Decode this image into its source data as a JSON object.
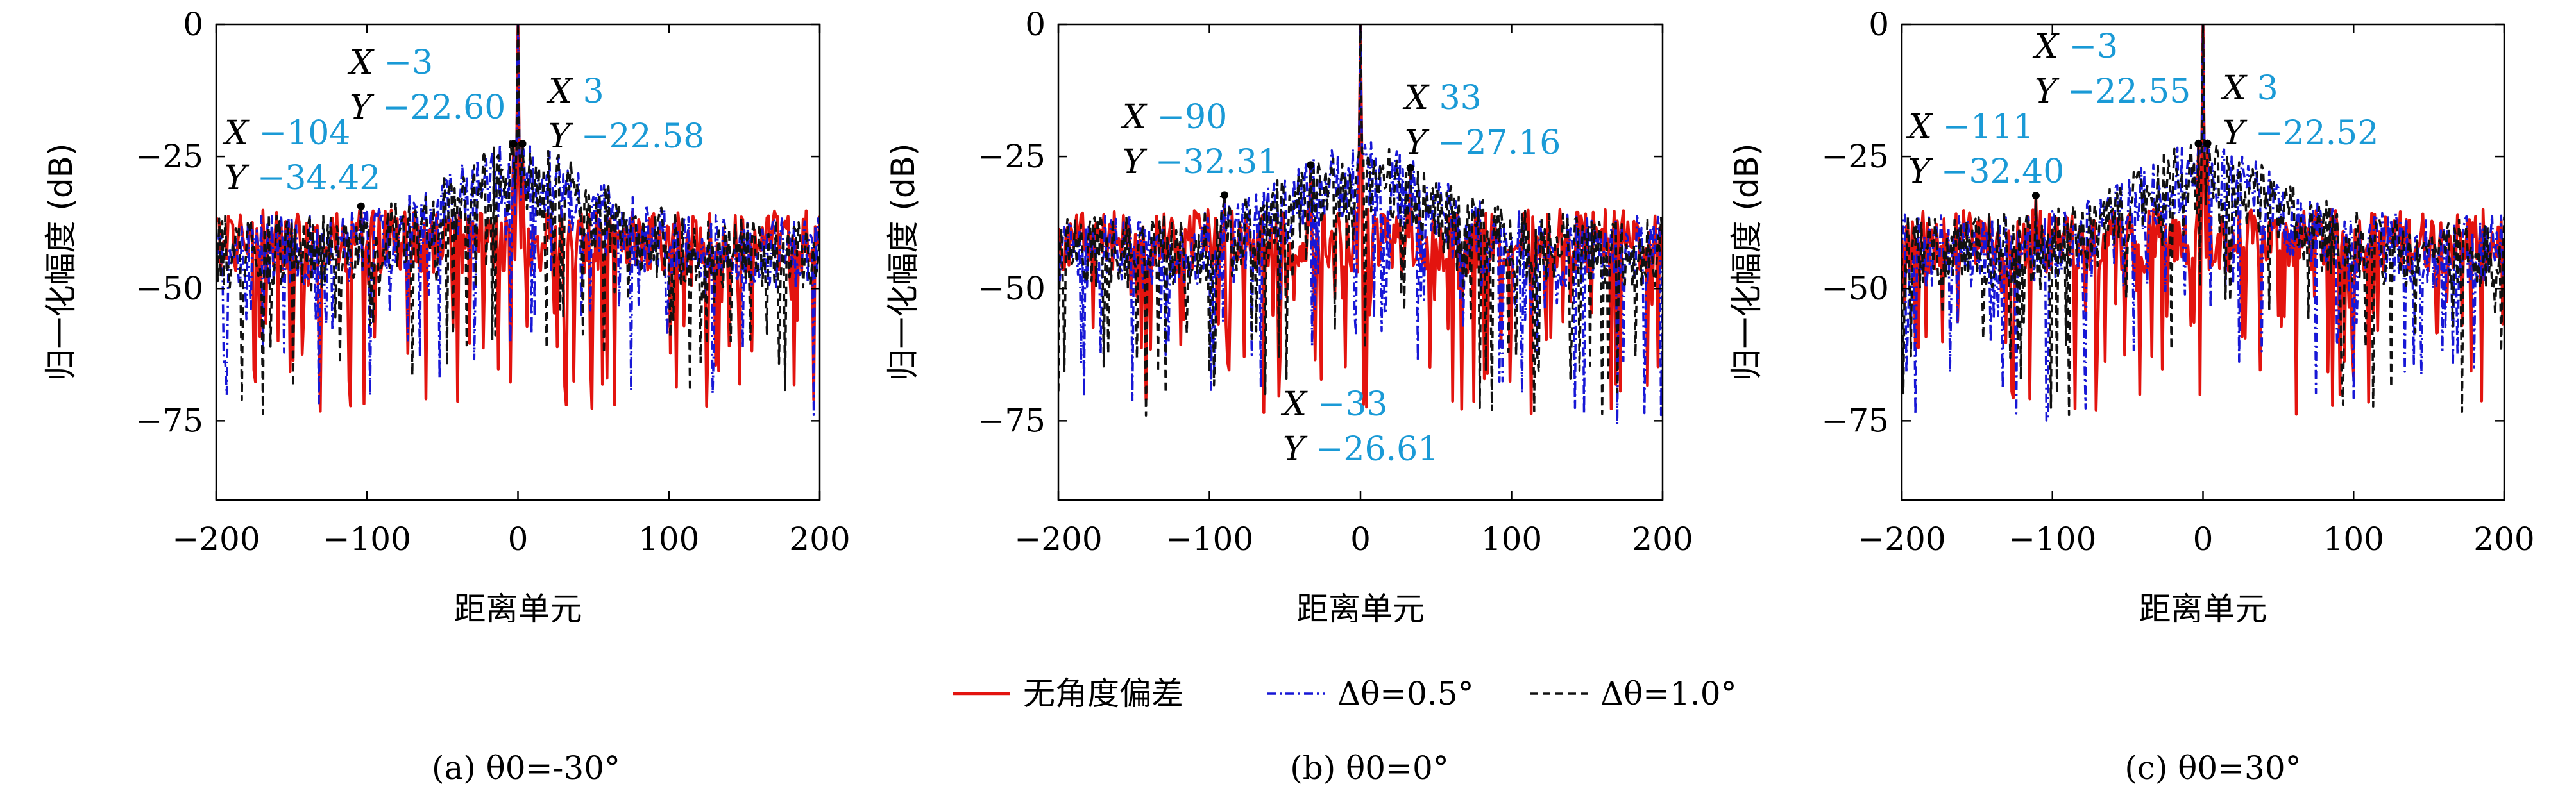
{
  "colors": {
    "red": "#e3140f",
    "blue": "#1717d6",
    "black": "#111111",
    "annotation_value": "#1a9ad6"
  },
  "legend": [
    {
      "label": "无角度偏差",
      "style": "solid",
      "color": "#e3140f"
    },
    {
      "label": "Δθ=0.5°",
      "style": "dashdot",
      "color": "#1717d6"
    },
    {
      "label": "Δθ=1.0°",
      "style": "dashed",
      "color": "#111111"
    }
  ],
  "chart_data": [
    {
      "type": "line",
      "caption": "(a) θ0=-30°",
      "xlabel": "距离单元",
      "ylabel": "归一化幅度 (dB)",
      "xlim": [
        -200,
        200
      ],
      "ylim": [
        -90,
        0
      ],
      "xticks": [
        "−200",
        "−100",
        "0",
        "100",
        "200"
      ],
      "yticks": [
        "0",
        "−25",
        "−50",
        "−75"
      ],
      "noise_floor": [
        -34,
        -36,
        -42,
        -48
      ],
      "peaks": [
        [
          -3,
          -22.6
        ],
        [
          3,
          -22.58
        ],
        [
          0,
          0
        ],
        [
          -104,
          -34.42
        ]
      ],
      "annotations": [
        {
          "x_label": "X",
          "x_value": "−3",
          "y_label": "Y",
          "y_value": "−22.60"
        },
        {
          "x_label": "X",
          "x_value": "3",
          "y_label": "Y",
          "y_value": "−22.58"
        },
        {
          "x_label": "X",
          "x_value": "−104",
          "y_label": "Y",
          "y_value": "−34.42"
        }
      ]
    },
    {
      "type": "line",
      "caption": "(b) θ0=0°",
      "xlabel": "距离单元",
      "ylabel": "归一化幅度 (dB)",
      "xlim": [
        -200,
        200
      ],
      "ylim": [
        -90,
        0
      ],
      "xticks": [
        "−200",
        "−100",
        "0",
        "100",
        "200"
      ],
      "yticks": [
        "0",
        "−25",
        "−50",
        "−75"
      ],
      "noise_floor": [
        -34,
        -36,
        -40,
        -44
      ],
      "peaks": [
        [
          -33,
          -26.61
        ],
        [
          33,
          -27.16
        ],
        [
          0,
          0
        ],
        [
          -90,
          -32.31
        ]
      ],
      "annotations": [
        {
          "x_label": "X",
          "x_value": "−90",
          "y_label": "Y",
          "y_value": "−32.31"
        },
        {
          "x_label": "X",
          "x_value": "33",
          "y_label": "Y",
          "y_value": "−27.16"
        },
        {
          "x_label": "X",
          "x_value": "−33",
          "y_label": "Y",
          "y_value": "−26.61"
        }
      ]
    },
    {
      "type": "line",
      "caption": "(c) θ0=30°",
      "xlabel": "距离单元",
      "ylabel": "归一化幅度 (dB)",
      "xlim": [
        -200,
        200
      ],
      "ylim": [
        -90,
        0
      ],
      "xticks": [
        "−200",
        "−100",
        "0",
        "100",
        "200"
      ],
      "yticks": [
        "0",
        "−25",
        "−50",
        "−75"
      ],
      "noise_floor": [
        -34,
        -36,
        -41,
        -47
      ],
      "peaks": [
        [
          -3,
          -22.55
        ],
        [
          3,
          -22.52
        ],
        [
          0,
          0
        ],
        [
          -111,
          -32.4
        ]
      ],
      "annotations": [
        {
          "x_label": "X",
          "x_value": "−3",
          "y_label": "Y",
          "y_value": "−22.55"
        },
        {
          "x_label": "X",
          "x_value": "3",
          "y_label": "Y",
          "y_value": "−22.52"
        },
        {
          "x_label": "X",
          "x_value": "−111",
          "y_label": "Y",
          "y_value": "−32.40"
        }
      ]
    }
  ]
}
